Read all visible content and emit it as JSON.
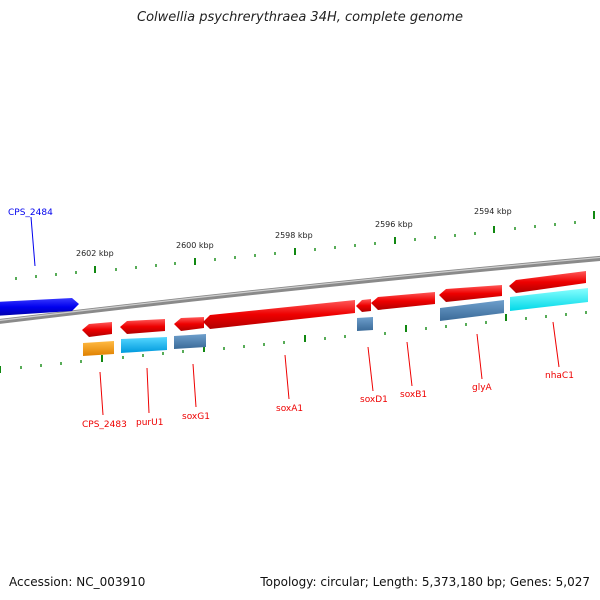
{
  "title": "Colwellia psychrerythraea 34H, complete genome",
  "accession_text": "Accession: NC_003910",
  "topology_text": "Topology: circular; Length: 5,373,180 bp; Genes: 5,027",
  "colors": {
    "forward_gene": "#0000ee",
    "reverse_gene": "#ee0000",
    "backbone": "#888888",
    "tick": "#118811",
    "cog_orange": "#ff9900",
    "cog_lightblue": "#00bbff",
    "cog_steelblue": "#4a7fb0",
    "cog_cyan": "#00ffff"
  },
  "tick_labels": [
    "2602 kbp",
    "2600 kbp",
    "2598 kbp",
    "2596 kbp",
    "2594 kbp"
  ],
  "gene_labels": {
    "forward": [
      "CPS_2484"
    ],
    "reverse": [
      "CPS_2483",
      "purU1",
      "soxG1",
      "soxA1",
      "soxD1",
      "soxB1",
      "glyA",
      "nhaC1"
    ]
  }
}
